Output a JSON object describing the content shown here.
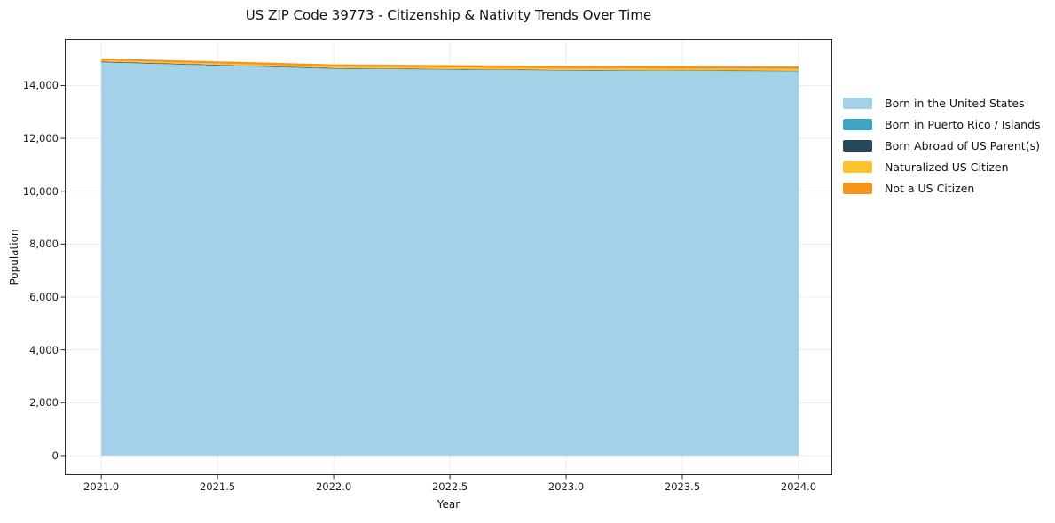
{
  "chart_data": {
    "type": "area",
    "stacked": true,
    "title": "US ZIP Code 39773 - Citizenship & Nativity Trends Over Time",
    "xlabel": "Year",
    "ylabel": "Population",
    "x": [
      2021,
      2022,
      2023,
      2024
    ],
    "series": [
      {
        "name": "Born in the United States",
        "color": "#a2d1e8",
        "values": [
          14875,
          14630,
          14565,
          14535
        ]
      },
      {
        "name": "Born in Puerto Rico / Islands",
        "color": "#3fa5c4",
        "values": [
          10,
          10,
          10,
          10
        ]
      },
      {
        "name": "Born Abroad of US Parent(s)",
        "color": "#27485c",
        "values": [
          25,
          20,
          15,
          15
        ]
      },
      {
        "name": "Naturalized US Citizen",
        "color": "#fcc32e",
        "values": [
          45,
          55,
          60,
          65
        ]
      },
      {
        "name": "Not a US Citizen",
        "color": "#f7941f",
        "values": [
          75,
          85,
          95,
          100
        ]
      }
    ],
    "totals": [
      15030,
      14800,
      14745,
      14725
    ],
    "xlim": [
      2020.843,
      2024.145
    ],
    "ylim": [
      -740,
      15760
    ],
    "xticks": {
      "values": [
        2021.0,
        2021.5,
        2022.0,
        2022.5,
        2023.0,
        2023.5,
        2024.0
      ],
      "labels": [
        "2021.0",
        "2021.5",
        "2022.0",
        "2022.5",
        "2023.0",
        "2023.5",
        "2024.0"
      ]
    },
    "yticks": {
      "values": [
        0,
        2000,
        4000,
        6000,
        8000,
        10000,
        12000,
        14000
      ],
      "labels": [
        "0",
        "2,000",
        "4,000",
        "6,000",
        "8,000",
        "10,000",
        "12,000",
        "14,000"
      ]
    },
    "grid": true,
    "legend_position": "right",
    "colors": {
      "spine": "#2b2b2b",
      "grid": "#ececec",
      "background": "#ffffff"
    }
  }
}
